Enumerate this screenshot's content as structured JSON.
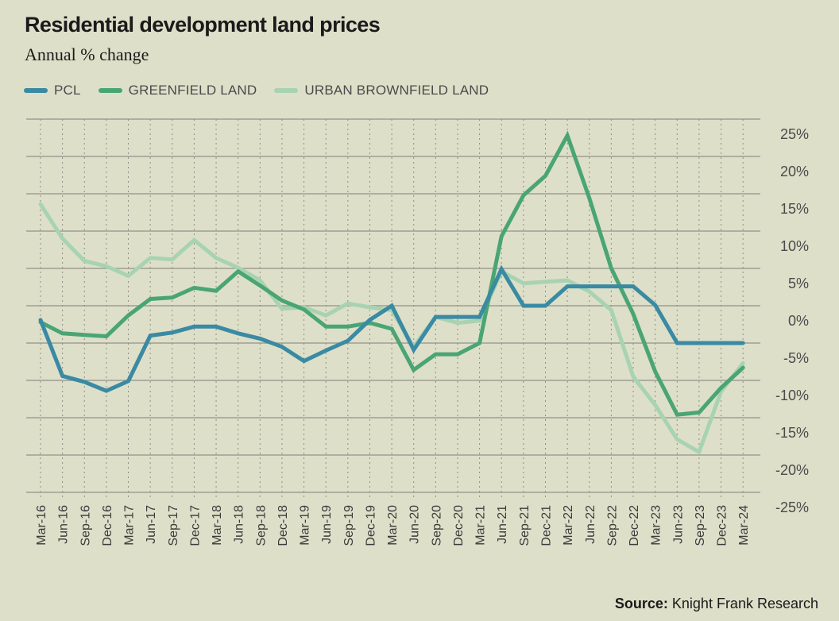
{
  "header": {
    "title": "Residential development land prices",
    "subtitle": "Annual % change"
  },
  "legend": [
    {
      "label": "PCL",
      "color": "#3a8aa3"
    },
    {
      "label": "GREENFIELD LAND",
      "color": "#4aa574"
    },
    {
      "label": "URBAN BROWNFIELD LAND",
      "color": "#a8d3b2"
    }
  ],
  "footer": {
    "source_label": "Source:",
    "source_text": "Knight Frank Research"
  },
  "chart_data": {
    "type": "line",
    "title": "Residential development land prices",
    "subtitle": "Annual % change",
    "xlabel": "",
    "ylabel": "",
    "ylim": [
      -25,
      25
    ],
    "yticks": [
      25,
      20,
      15,
      10,
      5,
      0,
      -5,
      -10,
      -15,
      -20,
      -25
    ],
    "ytick_labels": [
      "25%",
      "20%",
      "15%",
      "10%",
      "5%",
      "0%",
      "-5%",
      "-10%",
      "-15%",
      "-20%",
      "-25%"
    ],
    "y_axis_side": "right",
    "grid": true,
    "legend_position": "top-left",
    "categories": [
      "Mar-16",
      "Jun-16",
      "Sep-16",
      "Dec-16",
      "Mar-17",
      "Jun-17",
      "Sep-17",
      "Dec-17",
      "Mar-18",
      "Jun-18",
      "Sep-18",
      "Dec-18",
      "Mar-19",
      "Jun-19",
      "Sep-19",
      "Dec-19",
      "Mar-20",
      "Jun-20",
      "Sep-20",
      "Dec-20",
      "Mar-21",
      "Jun-21",
      "Sep-21",
      "Dec-21",
      "Mar-22",
      "Jun-22",
      "Sep-22",
      "Dec-22",
      "Mar-23",
      "Jun-23",
      "Sep-23",
      "Dec-23",
      "Mar-24"
    ],
    "series": [
      {
        "name": "URBAN BROWNFIELD LAND",
        "color": "#a8d3b2",
        "values": [
          13.6,
          9.0,
          6.0,
          5.3,
          4.0,
          6.4,
          6.2,
          8.8,
          6.4,
          5.1,
          3.4,
          -0.4,
          -0.2,
          -1.3,
          0.3,
          -0.2,
          -0.6,
          -5.5,
          -1.5,
          -2.3,
          -2.0,
          4.6,
          3.0,
          3.2,
          3.4,
          1.9,
          -0.6,
          -9.5,
          -13.3,
          -17.9,
          -19.6,
          -11.5,
          -7.7
        ]
      },
      {
        "name": "GREENFIELD LAND",
        "color": "#4aa574",
        "values": [
          -2.2,
          -3.7,
          -3.9,
          -4.1,
          -1.3,
          0.9,
          1.1,
          2.4,
          2.0,
          4.6,
          2.7,
          0.7,
          -0.5,
          -2.8,
          -2.8,
          -2.3,
          -3.1,
          -8.6,
          -6.5,
          -6.5,
          -5.0,
          9.3,
          14.8,
          17.4,
          22.8,
          14.4,
          5.0,
          -1.1,
          -8.8,
          -14.6,
          -14.3,
          -11.0,
          -8.3
        ]
      },
      {
        "name": "PCL",
        "color": "#3a8aa3",
        "values": [
          -1.9,
          -9.4,
          -10.2,
          -11.4,
          -10.1,
          -4.0,
          -3.6,
          -2.8,
          -2.8,
          -3.7,
          -4.4,
          -5.5,
          -7.4,
          -6.0,
          -4.7,
          -1.9,
          0.0,
          -5.9,
          -1.5,
          -1.5,
          -1.5,
          4.9,
          0.0,
          0.0,
          2.6,
          2.6,
          2.6,
          2.6,
          0.1,
          -5.0,
          -5.0,
          -5.0,
          -5.0
        ]
      }
    ]
  }
}
